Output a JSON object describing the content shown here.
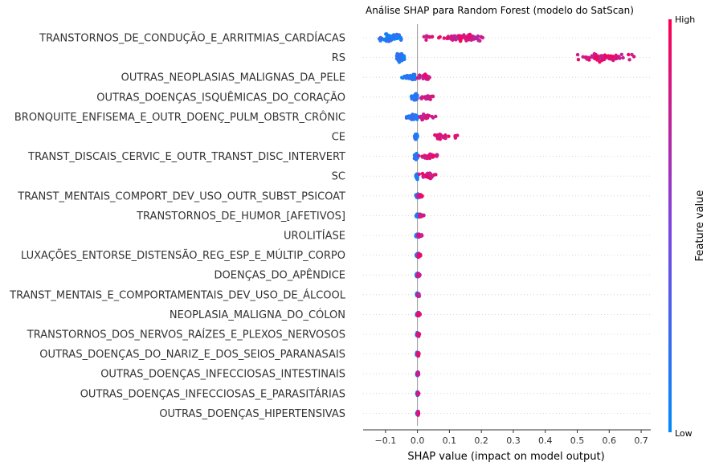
{
  "chart_data": {
    "type": "scatter",
    "subtype": "shap-beeswarm",
    "title": "Análise SHAP para Random Forest (modelo do SatScan)",
    "xlabel": "SHAP value (impact on model output)",
    "xlim": [
      -0.17,
      0.73
    ],
    "xticks": [
      -0.1,
      0.0,
      0.1,
      0.2,
      0.3,
      0.4,
      0.5,
      0.6,
      0.7
    ],
    "xtick_labels": [
      "−0.1",
      "0.0",
      "0.1",
      "0.2",
      "0.3",
      "0.4",
      "0.5",
      "0.6",
      "0.7"
    ],
    "colorbar": {
      "label": "Feature value",
      "high": "High",
      "low": "Low",
      "low_color": "#008bfb",
      "high_color": "#ff0051"
    },
    "features": [
      {
        "name": "TRANSTORNOS_DE_CONDUÇÃO_E_ARRITMIAS_CARDÍACAS",
        "low_range": [
          -0.12,
          -0.05
        ],
        "high_range": [
          0.02,
          0.21
        ],
        "low_center": -0.085,
        "high_center": 0.15
      },
      {
        "name": "RS",
        "low_range": [
          -0.065,
          -0.04
        ],
        "high_range": [
          0.5,
          0.68
        ],
        "low_center": -0.055,
        "high_center": 0.58
      },
      {
        "name": "OUTRAS_NEOPLASIAS_MALIGNAS_DA_PELE",
        "low_range": [
          -0.05,
          -0.005
        ],
        "high_range": [
          0.0,
          0.045
        ],
        "low_center": -0.01,
        "high_center": 0.02
      },
      {
        "name": "OUTRAS_DOENÇAS_ISQUÊMICAS_DO_CORAÇÃO",
        "low_range": [
          -0.02,
          0.0
        ],
        "high_range": [
          0.0,
          0.05
        ],
        "low_center": -0.005,
        "high_center": 0.02
      },
      {
        "name": "BRONQUITE_ENFISEMA_E_OUTR_DOENÇ_PULM_OBSTR_CRÔNIC",
        "low_range": [
          -0.035,
          0.0
        ],
        "high_range": [
          0.0,
          0.06
        ],
        "low_center": -0.01,
        "high_center": 0.015
      },
      {
        "name": "CE",
        "low_range": [
          -0.01,
          0.0
        ],
        "high_range": [
          0.05,
          0.125
        ],
        "low_center": -0.005,
        "high_center": 0.06
      },
      {
        "name": "TRANST_DISCAIS_CERVIC_E_OUTR_TRANST_DISC_INTERVERT",
        "low_range": [
          -0.01,
          0.0
        ],
        "high_range": [
          0.0,
          0.065
        ],
        "low_center": -0.003,
        "high_center": 0.04
      },
      {
        "name": "SC",
        "low_range": [
          -0.005,
          0.0
        ],
        "high_range": [
          0.0,
          0.06
        ],
        "low_center": 0.0,
        "high_center": 0.035
      },
      {
        "name": "TRANST_MENTAIS_COMPORT_DEV_USO_OUTR_SUBST_PSICOAT",
        "low_range": [
          -0.005,
          0.005
        ],
        "high_range": [
          0.0,
          0.015
        ],
        "low_center": 0.0,
        "high_center": 0.008
      },
      {
        "name": "TRANSTORNOS_DE_HUMOR_[AFETIVOS]",
        "low_range": [
          -0.005,
          0.005
        ],
        "high_range": [
          0.0,
          0.02
        ],
        "low_center": 0.0,
        "high_center": 0.01
      },
      {
        "name": "UROLITÍASE",
        "low_range": [
          -0.005,
          0.005
        ],
        "high_range": [
          0.0,
          0.015
        ],
        "low_center": 0.0,
        "high_center": 0.006
      },
      {
        "name": "LUXAÇÕES_ENTORSE_DISTENSÃO_REG_ESP_E_MÚLTIP_CORPO",
        "low_range": [
          -0.004,
          0.004
        ],
        "high_range": [
          0.0,
          0.01
        ],
        "low_center": 0.0,
        "high_center": 0.005
      },
      {
        "name": "DOENÇAS_DO_APÊNDICE",
        "low_range": [
          -0.004,
          0.004
        ],
        "high_range": [
          0.0,
          0.008
        ],
        "low_center": 0.0,
        "high_center": 0.004
      },
      {
        "name": "TRANST_MENTAIS_E_COMPORTAMENTAIS_DEV_USO_DE_ÁLCOOL",
        "low_range": [
          -0.003,
          0.003
        ],
        "high_range": [
          0.0,
          0.006
        ],
        "low_center": 0.0,
        "high_center": 0.003
      },
      {
        "name": "NEOPLASIA_MALIGNA_DO_CÓLON",
        "low_range": [
          -0.003,
          0.003
        ],
        "high_range": [
          0.0,
          0.008
        ],
        "low_center": 0.0,
        "high_center": 0.004
      },
      {
        "name": "TRANSTORNOS_DOS_NERVOS_RAÍZES_E_PLEXOS_NERVOSOS",
        "low_range": [
          -0.003,
          0.003
        ],
        "high_range": [
          0.0,
          0.006
        ],
        "low_center": 0.0,
        "high_center": 0.003
      },
      {
        "name": "OUTRAS_DOENÇAS_DO_NARIZ_E_DOS_SEIOS_PARANASAIS",
        "low_range": [
          -0.003,
          0.003
        ],
        "high_range": [
          0.0,
          0.005
        ],
        "low_center": 0.0,
        "high_center": 0.003
      },
      {
        "name": "OUTRAS_DOENÇAS_INFECCIOSAS_INTESTINAIS",
        "low_range": [
          -0.002,
          0.002
        ],
        "high_range": [
          0.0,
          0.004
        ],
        "low_center": 0.0,
        "high_center": 0.002
      },
      {
        "name": "OUTRAS_DOENÇAS_INFECCIOSAS_E_PARASITÁRIAS",
        "low_range": [
          -0.002,
          0.002
        ],
        "high_range": [
          0.0,
          0.004
        ],
        "low_center": 0.0,
        "high_center": 0.002
      },
      {
        "name": "OUTRAS_DOENÇAS_HIPERTENSIVAS",
        "low_range": [
          -0.002,
          0.002
        ],
        "high_range": [
          0.0,
          0.004
        ],
        "low_center": 0.0,
        "high_center": 0.002
      }
    ]
  }
}
